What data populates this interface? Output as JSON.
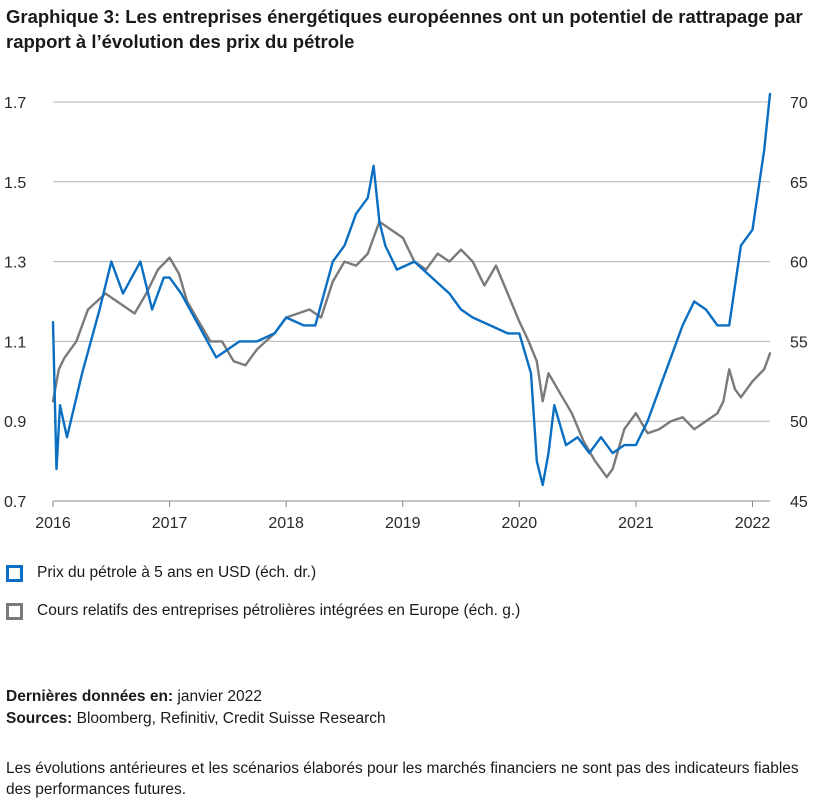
{
  "title": "Graphique 3: Les entreprises énergétiques européennes ont un potentiel de rattrapage par rapport à l’évolution des prix du pétrole",
  "legend": {
    "oil": "Prix du pétrole à 5 ans en USD (éch. dr.)",
    "stocks": "Cours relatifs des entreprises pétrolières intégrées en Europe (éch. g.)"
  },
  "notes": {
    "last_label": "Dernières données en:",
    "last_value": " janvier 2022",
    "sources_label": "Sources:",
    "sources_value": " Bloomberg, Refinitiv, Credit Suisse Research"
  },
  "disclaimer": "Les évolutions antérieures et les scénarios élaborés pour les marchés financiers ne sont pas des indicateurs fiables des performances futures.",
  "chart_data": {
    "type": "line",
    "title": "Graphique 3: Les entreprises énergétiques européennes ont un potentiel de rattrapage par rapport à l’évolution des prix du pétrole",
    "x_ticks": [
      "2016",
      "2017",
      "2018",
      "2019",
      "2020",
      "2021",
      "2022"
    ],
    "x_range": [
      2016,
      2022.15
    ],
    "y_left": {
      "range": [
        0.7,
        1.7
      ],
      "ticks": [
        "0.7",
        "0.9",
        "1.1",
        "1.3",
        "1.5",
        "1.7"
      ]
    },
    "y_right": {
      "range": [
        45,
        70
      ],
      "ticks": [
        "45",
        "50",
        "55",
        "60",
        "65",
        "70"
      ]
    },
    "grid": "horizontal",
    "series": [
      {
        "name": "Prix du pétrole à 5 ans en USD (éch. dr.)",
        "axis": "right",
        "color": "#0a6fc2",
        "x": [
          2016.0,
          2016.03,
          2016.06,
          2016.12,
          2016.25,
          2016.4,
          2016.5,
          2016.6,
          2016.75,
          2016.85,
          2016.95,
          2017.0,
          2017.1,
          2017.25,
          2017.4,
          2017.5,
          2017.6,
          2017.75,
          2017.9,
          2018.0,
          2018.15,
          2018.25,
          2018.4,
          2018.5,
          2018.6,
          2018.7,
          2018.75,
          2018.8,
          2018.85,
          2018.95,
          2019.1,
          2019.25,
          2019.4,
          2019.5,
          2019.6,
          2019.75,
          2019.9,
          2020.0,
          2020.1,
          2020.15,
          2020.2,
          2020.25,
          2020.3,
          2020.4,
          2020.5,
          2020.6,
          2020.7,
          2020.8,
          2020.9,
          2021.0,
          2021.1,
          2021.2,
          2021.3,
          2021.4,
          2021.5,
          2021.6,
          2021.7,
          2021.8,
          2021.9,
          2022.0,
          2022.1,
          2022.15
        ],
        "y": [
          56.2,
          47,
          51,
          49,
          53,
          57,
          60,
          58,
          60,
          57,
          59,
          59,
          58,
          56,
          54,
          54.5,
          55,
          55,
          55.5,
          56.5,
          56,
          56,
          60,
          61,
          63,
          64,
          66,
          62.5,
          61,
          59.5,
          60,
          59,
          58,
          57,
          56.5,
          56,
          55.5,
          55.5,
          53,
          47.5,
          46,
          48,
          51,
          48.5,
          49,
          48,
          49,
          48,
          48.5,
          48.5,
          50,
          52,
          54,
          56,
          57.5,
          57,
          56,
          56,
          61,
          62,
          67,
          70.5
        ]
      },
      {
        "name": "Cours relatifs des entreprises pétrolières intégrées en Europe (éch. g.)",
        "axis": "left",
        "color": "#7a7a7a",
        "x": [
          2016.0,
          2016.05,
          2016.1,
          2016.2,
          2016.3,
          2016.45,
          2016.55,
          2016.7,
          2016.8,
          2016.9,
          2017.0,
          2017.08,
          2017.15,
          2017.25,
          2017.35,
          2017.45,
          2017.55,
          2017.65,
          2017.75,
          2017.9,
          2018.0,
          2018.1,
          2018.2,
          2018.3,
          2018.4,
          2018.5,
          2018.6,
          2018.7,
          2018.8,
          2018.9,
          2019.0,
          2019.1,
          2019.2,
          2019.3,
          2019.4,
          2019.5,
          2019.6,
          2019.7,
          2019.8,
          2019.9,
          2020.0,
          2020.08,
          2020.15,
          2020.2,
          2020.25,
          2020.35,
          2020.45,
          2020.55,
          2020.65,
          2020.75,
          2020.8,
          2020.9,
          2021.0,
          2021.1,
          2021.2,
          2021.3,
          2021.4,
          2021.5,
          2021.6,
          2021.7,
          2021.75,
          2021.8,
          2021.85,
          2021.9,
          2022.0,
          2022.1,
          2022.15
        ],
        "y": [
          0.95,
          1.03,
          1.06,
          1.1,
          1.18,
          1.22,
          1.2,
          1.17,
          1.22,
          1.28,
          1.31,
          1.27,
          1.2,
          1.15,
          1.1,
          1.1,
          1.05,
          1.04,
          1.08,
          1.12,
          1.16,
          1.17,
          1.18,
          1.16,
          1.25,
          1.3,
          1.29,
          1.32,
          1.4,
          1.38,
          1.36,
          1.3,
          1.28,
          1.32,
          1.3,
          1.33,
          1.3,
          1.24,
          1.29,
          1.22,
          1.15,
          1.1,
          1.05,
          0.95,
          1.02,
          0.97,
          0.92,
          0.85,
          0.8,
          0.76,
          0.78,
          0.88,
          0.92,
          0.87,
          0.88,
          0.9,
          0.91,
          0.88,
          0.9,
          0.92,
          0.95,
          1.03,
          0.98,
          0.96,
          1.0,
          1.03,
          1.07
        ]
      }
    ]
  }
}
